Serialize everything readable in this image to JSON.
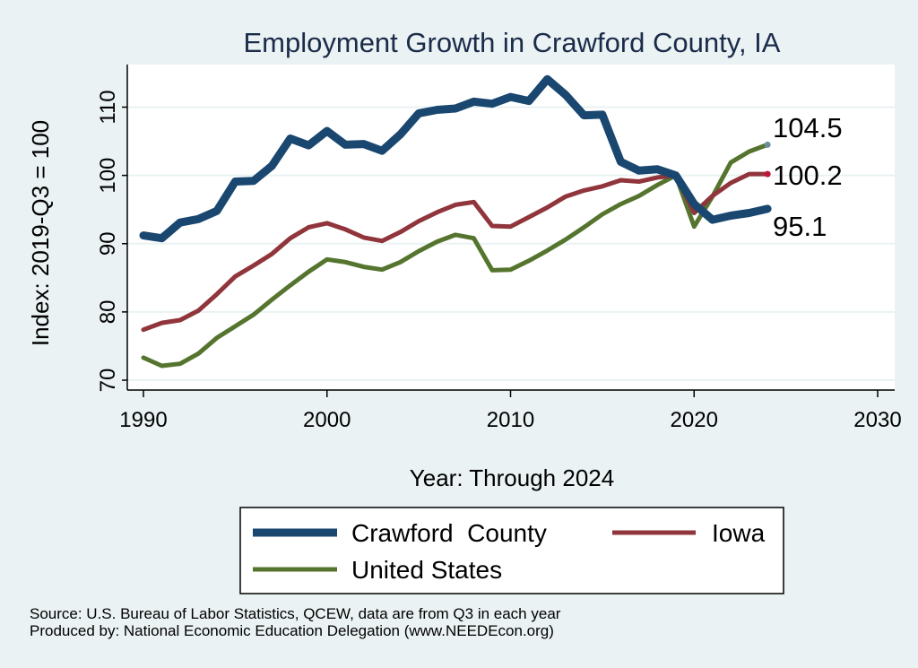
{
  "chart_data": {
    "type": "line",
    "title": "Employment Growth in Crawford County, IA",
    "xlabel": "Year: Through 2024",
    "ylabel": "Index: 2019-Q3 = 100",
    "xlim": [
      1990,
      2030
    ],
    "ylim": [
      70,
      115
    ],
    "xticks": [
      1990,
      2000,
      2010,
      2020,
      2030
    ],
    "yticks": [
      70,
      80,
      90,
      100,
      110
    ],
    "grid": true,
    "legend_position": "bottom",
    "x": [
      1990,
      1991,
      1992,
      1993,
      1994,
      1995,
      1996,
      1997,
      1998,
      1999,
      2000,
      2001,
      2002,
      2003,
      2004,
      2005,
      2006,
      2007,
      2008,
      2009,
      2010,
      2011,
      2012,
      2013,
      2014,
      2015,
      2016,
      2017,
      2018,
      2019,
      2020,
      2021,
      2022,
      2023,
      2024
    ],
    "series": [
      {
        "name": "Crawford  County",
        "color": "#1a476f",
        "values": [
          91.2,
          90.8,
          93.1,
          93.6,
          94.8,
          99.1,
          99.2,
          101.4,
          105.4,
          104.4,
          106.5,
          104.5,
          104.6,
          103.6,
          106.0,
          109.1,
          109.6,
          109.8,
          110.8,
          110.5,
          111.5,
          110.9,
          114.1,
          111.8,
          108.8,
          108.9,
          102.0,
          100.7,
          100.9,
          100.0,
          95.8,
          93.5,
          94.1,
          94.5,
          95.1
        ],
        "end_label": "95.1"
      },
      {
        "name": "Iowa",
        "color": "#90353b",
        "values": [
          77.4,
          78.4,
          78.8,
          80.2,
          82.6,
          85.2,
          86.8,
          88.5,
          90.8,
          92.4,
          93.0,
          92.1,
          90.9,
          90.4,
          91.7,
          93.3,
          94.6,
          95.7,
          96.1,
          92.6,
          92.5,
          93.9,
          95.3,
          96.9,
          97.8,
          98.4,
          99.3,
          99.1,
          99.7,
          100.0,
          94.5,
          97.0,
          98.9,
          100.2,
          100.2
        ],
        "end_label": "100.2"
      },
      {
        "name": "United States",
        "color": "#55752f",
        "values": [
          73.3,
          72.1,
          72.4,
          73.9,
          76.2,
          77.9,
          79.6,
          81.8,
          83.9,
          85.9,
          87.7,
          87.3,
          86.6,
          86.2,
          87.3,
          88.9,
          90.3,
          91.3,
          90.8,
          86.1,
          86.2,
          87.5,
          89.0,
          90.6,
          92.4,
          94.3,
          95.8,
          97.0,
          98.6,
          100.0,
          92.5,
          96.9,
          101.9,
          103.5,
          104.5
        ],
        "end_label": "104.5"
      }
    ],
    "notes": [
      "Source: U.S. Bureau of Labor Statistics, QCEW, data are from Q3 in each year",
      "Produced by: National Economic Education Delegation (www.NEEDEcon.org)"
    ]
  }
}
